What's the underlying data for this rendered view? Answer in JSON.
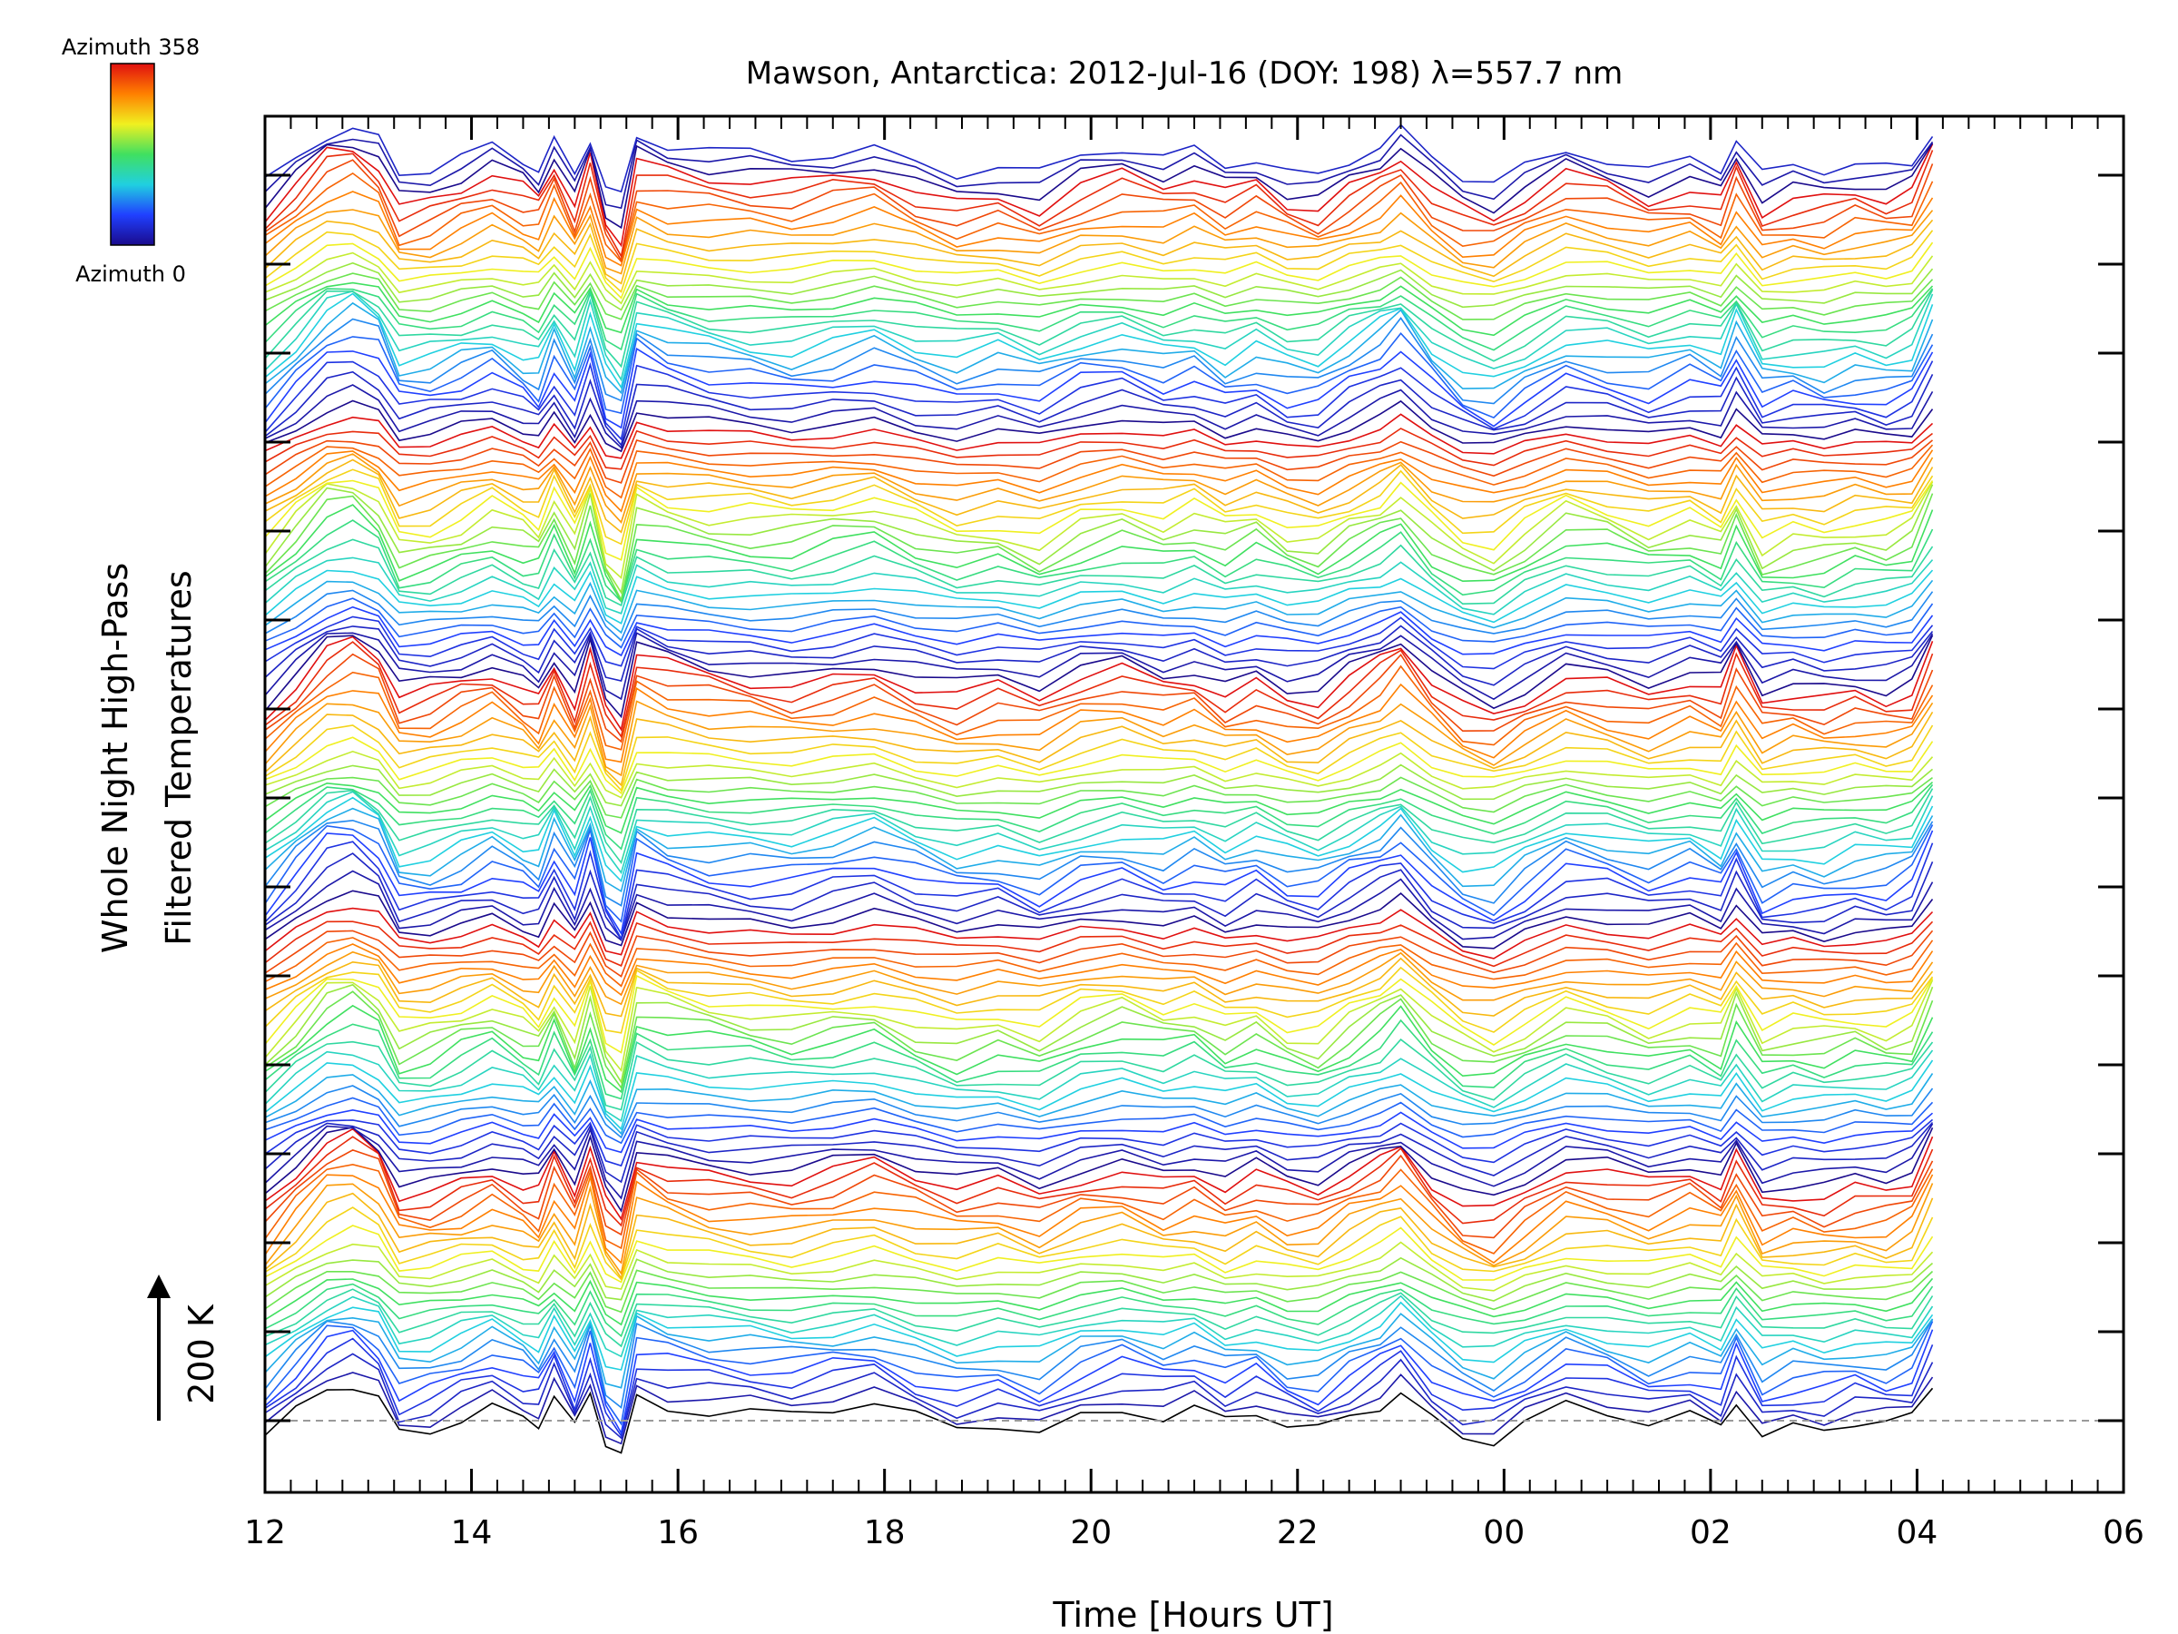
{
  "chart_data": {
    "type": "line",
    "title": "Mawson, Antarctica: 2012-Jul-16 (DOY: 198) λ=557.7 nm",
    "xlabel": "Time [Hours UT]",
    "ylabel_line1": "Whole Night High-Pass",
    "ylabel_line2": "Filtered Temperatures",
    "scale_bar_label": "200 K",
    "colorbar": {
      "top_label": "Azimuth 358",
      "bottom_label": "Azimuth 0",
      "colormap": "rainbow",
      "stops": [
        "#1a0a8c",
        "#2040ff",
        "#20d0e0",
        "#40e060",
        "#f0f020",
        "#ff8000",
        "#e01010"
      ]
    },
    "x_tick_labels": [
      "12",
      "14",
      "16",
      "18",
      "20",
      "22",
      "00",
      "02",
      "04",
      "06"
    ],
    "xlim": [
      12,
      30
    ],
    "x_data_range": [
      12.0,
      28.15
    ],
    "grid": false,
    "legend": "none",
    "baseline_style": "dashed",
    "series_count": 128,
    "series_offset_scale": "stacked by azimuth, offset per trace",
    "template_profile": {
      "x": [
        12.0,
        12.3,
        12.6,
        12.85,
        13.1,
        13.3,
        13.6,
        13.9,
        14.2,
        14.5,
        14.65,
        14.8,
        15.0,
        15.15,
        15.3,
        15.45,
        15.6,
        15.9,
        16.3,
        16.7,
        17.1,
        17.5,
        17.9,
        18.3,
        18.7,
        19.1,
        19.5,
        19.9,
        20.3,
        20.7,
        21.0,
        21.3,
        21.6,
        21.9,
        22.2,
        22.5,
        22.8,
        23.0,
        23.3,
        23.6,
        23.9,
        24.2,
        24.6,
        25.0,
        25.4,
        25.8,
        26.1,
        26.25,
        26.5,
        26.8,
        27.1,
        27.4,
        27.7,
        27.95,
        28.15
      ],
      "y": [
        -0.6,
        0.2,
        1.0,
        1.2,
        0.8,
        -0.3,
        -0.2,
        0.1,
        0.4,
        0.0,
        -0.2,
        0.7,
        -0.3,
        0.9,
        -0.6,
        -1.0,
        0.8,
        0.5,
        0.3,
        0.2,
        0.1,
        0.3,
        0.5,
        0.1,
        -0.2,
        0.0,
        -0.3,
        0.2,
        0.4,
        0.1,
        0.3,
        -0.1,
        0.2,
        -0.2,
        -0.3,
        0.2,
        0.6,
        1.0,
        0.1,
        -0.5,
        -0.7,
        -0.2,
        0.4,
        0.2,
        -0.1,
        0.2,
        -0.1,
        0.8,
        -0.4,
        -0.2,
        -0.3,
        -0.1,
        -0.2,
        0.0,
        1.1
      ]
    }
  }
}
